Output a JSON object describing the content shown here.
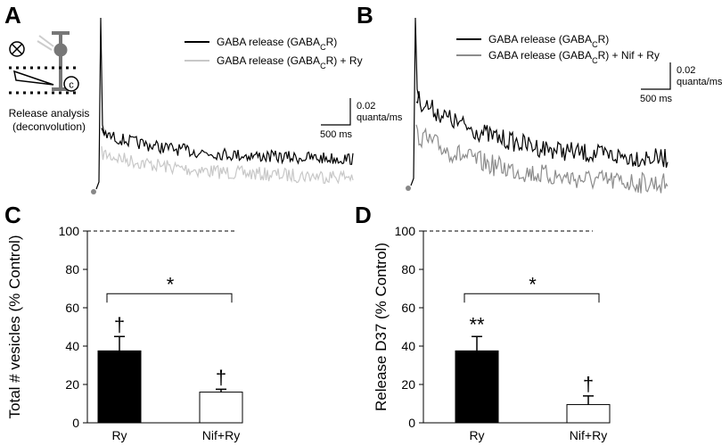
{
  "panels": [
    {
      "label": "A",
      "legend": [
        {
          "parts": [
            "GABA release (GABA",
            "C",
            "R)"
          ],
          "color": "#000000"
        },
        {
          "parts": [
            "GABA release (GABA",
            "C",
            "R) + Ry"
          ],
          "color": "#c8c8c8"
        }
      ],
      "scale_bar": {
        "y": "0.02",
        "y_unit": "quanta/ms",
        "x": "500 ms"
      },
      "caption": [
        "Release analysis",
        "(deconvolution)"
      ]
    },
    {
      "label": "B",
      "legend": [
        {
          "parts": [
            "GABA release (GABA",
            "C",
            "R)"
          ],
          "color": "#000000"
        },
        {
          "parts": [
            "GABA release (GABA",
            "C",
            "R) + Nif + Ry"
          ],
          "color": "#8c8c8c"
        }
      ],
      "scale_bar": {
        "y": "0.02",
        "y_unit": "quanta/ms",
        "x": "500 ms"
      }
    }
  ],
  "chart_data": [
    {
      "type": "bar",
      "panel_label": "C",
      "y_label": "Total # vesicles (% Control)",
      "categories": [
        "Ry",
        "Nif+Ry"
      ],
      "values": [
        37.5,
        16
      ],
      "errors": [
        7.5,
        1.5
      ],
      "colors": [
        "#000000",
        "#ffffff"
      ],
      "markers": [
        "†",
        "†"
      ],
      "significance": {
        "label": "*"
      },
      "reference_line": 100,
      "ylim": [
        0,
        100
      ],
      "yticks": [
        0,
        20,
        40,
        60,
        80,
        100
      ]
    },
    {
      "type": "bar",
      "panel_label": "D",
      "y_label": "Release D37 (% Control)",
      "categories": [
        "Ry",
        "Nif+Ry"
      ],
      "values": [
        37.5,
        9.5
      ],
      "errors": [
        7.5,
        4.5
      ],
      "colors": [
        "#000000",
        "#ffffff"
      ],
      "markers": [
        "**",
        "†"
      ],
      "significance": {
        "label": "*"
      },
      "reference_line": 100,
      "ylim": [
        0,
        100
      ],
      "yticks": [
        0,
        20,
        40,
        60,
        80,
        100
      ]
    }
  ]
}
